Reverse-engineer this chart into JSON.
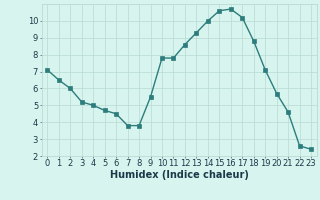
{
  "xlabel": "Humidex (Indice chaleur)",
  "x": [
    0,
    1,
    2,
    3,
    4,
    5,
    6,
    7,
    8,
    9,
    10,
    11,
    12,
    13,
    14,
    15,
    16,
    17,
    18,
    19,
    20,
    21,
    22,
    23
  ],
  "y": [
    7.1,
    6.5,
    6.0,
    5.2,
    5.0,
    4.7,
    4.5,
    3.8,
    3.8,
    5.5,
    7.8,
    7.8,
    8.6,
    9.3,
    10.0,
    10.6,
    10.7,
    10.2,
    8.8,
    7.1,
    5.7,
    4.6,
    2.6,
    2.4
  ],
  "line_color": "#2d7d7d",
  "marker": "s",
  "markersize": 2.5,
  "bg_color": "#d8f4ee",
  "grid_color": "#b8dbd4",
  "tick_label_color": "#1a3a4a",
  "axis_label_color": "#1a3a4a",
  "ylim": [
    2,
    11
  ],
  "yticks": [
    2,
    3,
    4,
    5,
    6,
    7,
    8,
    9,
    10
  ],
  "xticks": [
    0,
    1,
    2,
    3,
    4,
    5,
    6,
    7,
    8,
    9,
    10,
    11,
    12,
    13,
    14,
    15,
    16,
    17,
    18,
    19,
    20,
    21,
    22,
    23
  ],
  "xlabel_fontsize": 7,
  "tick_fontsize": 6,
  "linewidth": 1.0
}
